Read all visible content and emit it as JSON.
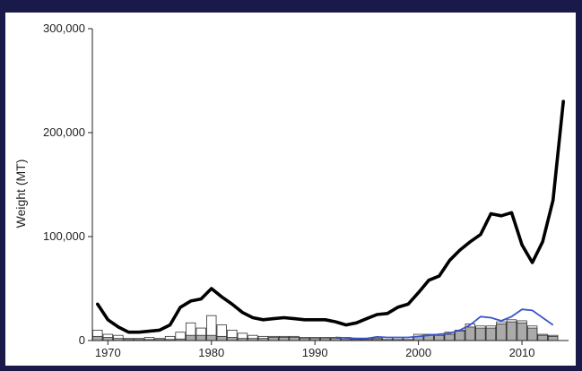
{
  "colors": {
    "background": "#1a1a4a",
    "plot_background": "#ffffff",
    "black_line": "#000000",
    "blue_line": "#3a56c8",
    "gray_bar": "#aaaaaa",
    "white_bar": "#ffffff",
    "bar_stroke": "#333333"
  },
  "chart_data": {
    "type": "line",
    "title": "",
    "xlabel": "",
    "ylabel": "Weight (MT)",
    "xlim": [
      1968.5,
      2014.5
    ],
    "ylim": [
      0,
      300000
    ],
    "x_ticks": [
      1970,
      1980,
      1990,
      2000,
      2010
    ],
    "y_ticks": [
      0,
      100000,
      200000,
      300000
    ],
    "y_tick_labels": [
      "0",
      "100,000",
      "200,000",
      "300,000"
    ],
    "grid": false,
    "legend": "none",
    "series": [
      {
        "style": "thick-black-line",
        "x": [
          1969,
          1970,
          1971,
          1972,
          1973,
          1974,
          1975,
          1976,
          1977,
          1978,
          1979,
          1980,
          1981,
          1982,
          1983,
          1984,
          1985,
          1986,
          1987,
          1988,
          1989,
          1990,
          1991,
          1992,
          1993,
          1994,
          1995,
          1996,
          1997,
          1998,
          1999,
          2000,
          2001,
          2002,
          2003,
          2004,
          2005,
          2006,
          2007,
          2008,
          2009,
          2010,
          2011,
          2012,
          2013,
          2014
        ],
        "values": [
          35000,
          20000,
          13000,
          8000,
          8000,
          9000,
          10000,
          15000,
          32000,
          38000,
          40000,
          50000,
          42000,
          35000,
          27000,
          22000,
          20000,
          21000,
          22000,
          21000,
          20000,
          20000,
          20000,
          18000,
          15000,
          17000,
          21000,
          25000,
          26000,
          32000,
          35000,
          46000,
          58000,
          62000,
          77000,
          87000,
          95000,
          102000,
          122000,
          120000,
          123000,
          92000,
          75000,
          95000,
          135000,
          230000
        ]
      },
      {
        "style": "thin-blue-line",
        "x": [
          1992,
          1993,
          1994,
          1995,
          1996,
          1997,
          1998,
          1999,
          2000,
          2001,
          2002,
          2003,
          2004,
          2005,
          2006,
          2007,
          2008,
          2009,
          2010,
          2011,
          2012,
          2013
        ],
        "values": [
          3000,
          2500,
          2000,
          2000,
          3500,
          3000,
          3000,
          3000,
          4000,
          5000,
          6000,
          7000,
          10000,
          15000,
          23000,
          22000,
          19000,
          23000,
          30000,
          29000,
          22000,
          15000
        ]
      },
      {
        "style": "white-bars",
        "x": [
          1969,
          1970,
          1971,
          1972,
          1973,
          1974,
          1975,
          1976,
          1977,
          1978,
          1979,
          1980,
          1981,
          1982,
          1983,
          1984,
          1985,
          1986,
          1987,
          1988,
          1989,
          1990,
          1991,
          1992,
          1993,
          1994,
          1995,
          1996,
          1997,
          1998,
          1999,
          2000,
          2001,
          2002,
          2003,
          2004,
          2005,
          2006,
          2007,
          2008,
          2009,
          2010,
          2011,
          2012,
          2013
        ],
        "values": [
          10000,
          6000,
          5000,
          2000,
          2000,
          3000,
          2000,
          4000,
          8000,
          17000,
          12000,
          24000,
          15000,
          10000,
          7000,
          5000,
          4000,
          4000,
          4000,
          4000,
          3000,
          3000,
          3000,
          3000,
          3000,
          2000,
          2000,
          2000,
          3000,
          3000,
          3000,
          6000,
          6000,
          6000,
          8000,
          10000,
          16000,
          14000,
          14000,
          18000,
          20000,
          19000,
          14000,
          6000,
          5000
        ]
      },
      {
        "style": "gray-bars",
        "x": [
          1969,
          1970,
          1971,
          1972,
          1973,
          1974,
          1975,
          1976,
          1977,
          1978,
          1979,
          1980,
          1981,
          1982,
          1983,
          1984,
          1985,
          1986,
          1987,
          1988,
          1989,
          1990,
          1991,
          1992,
          1993,
          1994,
          1995,
          1996,
          1997,
          1998,
          1999,
          2000,
          2001,
          2002,
          2003,
          2004,
          2005,
          2006,
          2007,
          2008,
          2009,
          2010,
          2011,
          2012,
          2013
        ],
        "values": [
          4000,
          3000,
          2000,
          1000,
          1000,
          1000,
          1000,
          1000,
          1500,
          5000,
          5000,
          5000,
          4000,
          3000,
          2000,
          2000,
          2000,
          3000,
          3000,
          3000,
          2000,
          2000,
          2000,
          2000,
          1000,
          1000,
          1000,
          1000,
          1000,
          1000,
          1000,
          4000,
          5000,
          5000,
          6000,
          9000,
          13000,
          12000,
          12000,
          16000,
          18000,
          17000,
          12000,
          5000,
          4000
        ]
      }
    ]
  }
}
